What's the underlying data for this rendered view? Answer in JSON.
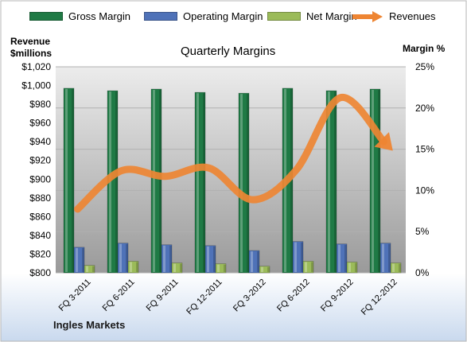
{
  "chart_data": {
    "type": "bar",
    "title": "Quarterly Margins",
    "categories": [
      "FQ 3-2011",
      "FQ 6-2011",
      "FQ 9-2011",
      "FQ 12-2011",
      "FQ 3-2012",
      "FQ 6-2012",
      "FQ 9-2012",
      "FQ 12-2012"
    ],
    "y_left": {
      "label": "Revenue $millions",
      "label_lines": [
        "Revenue",
        "$millions"
      ],
      "range": [
        800,
        1020
      ],
      "ticks": [
        800,
        820,
        840,
        860,
        880,
        900,
        920,
        940,
        960,
        980,
        1000,
        1020
      ],
      "tick_labels": [
        "$800",
        "$820",
        "$840",
        "$860",
        "$880",
        "$900",
        "$920",
        "$940",
        "$960",
        "$980",
        "$1,000",
        "$1,020"
      ]
    },
    "y_right": {
      "label": "Margin %",
      "range": [
        0,
        25
      ],
      "ticks": [
        0,
        5,
        10,
        15,
        20,
        25
      ],
      "tick_labels": [
        "0%",
        "5%",
        "10%",
        "15%",
        "20%",
        "25%"
      ]
    },
    "grid": true,
    "legend_position": "top",
    "series": [
      {
        "name": "Gross Margin",
        "kind": "bar",
        "axis": "right",
        "color": "#1f7a45",
        "values": [
          22.4,
          22.1,
          22.3,
          21.9,
          21.8,
          22.4,
          22.1,
          22.3
        ]
      },
      {
        "name": "Operating Margin",
        "kind": "bar",
        "axis": "right",
        "color": "#4f72b8",
        "values": [
          3.1,
          3.6,
          3.4,
          3.3,
          2.7,
          3.8,
          3.5,
          3.6
        ]
      },
      {
        "name": "Net Margin",
        "kind": "bar",
        "axis": "right",
        "color": "#9bbb59",
        "values": [
          0.9,
          1.4,
          1.2,
          1.1,
          0.8,
          1.4,
          1.3,
          1.2
        ]
      },
      {
        "name": "Revenues",
        "kind": "line",
        "axis": "left",
        "color": "#ee8533",
        "values": [
          868,
          909,
          903,
          912,
          878,
          910,
          987,
          940
        ]
      }
    ],
    "footer": "Ingles Markets"
  }
}
